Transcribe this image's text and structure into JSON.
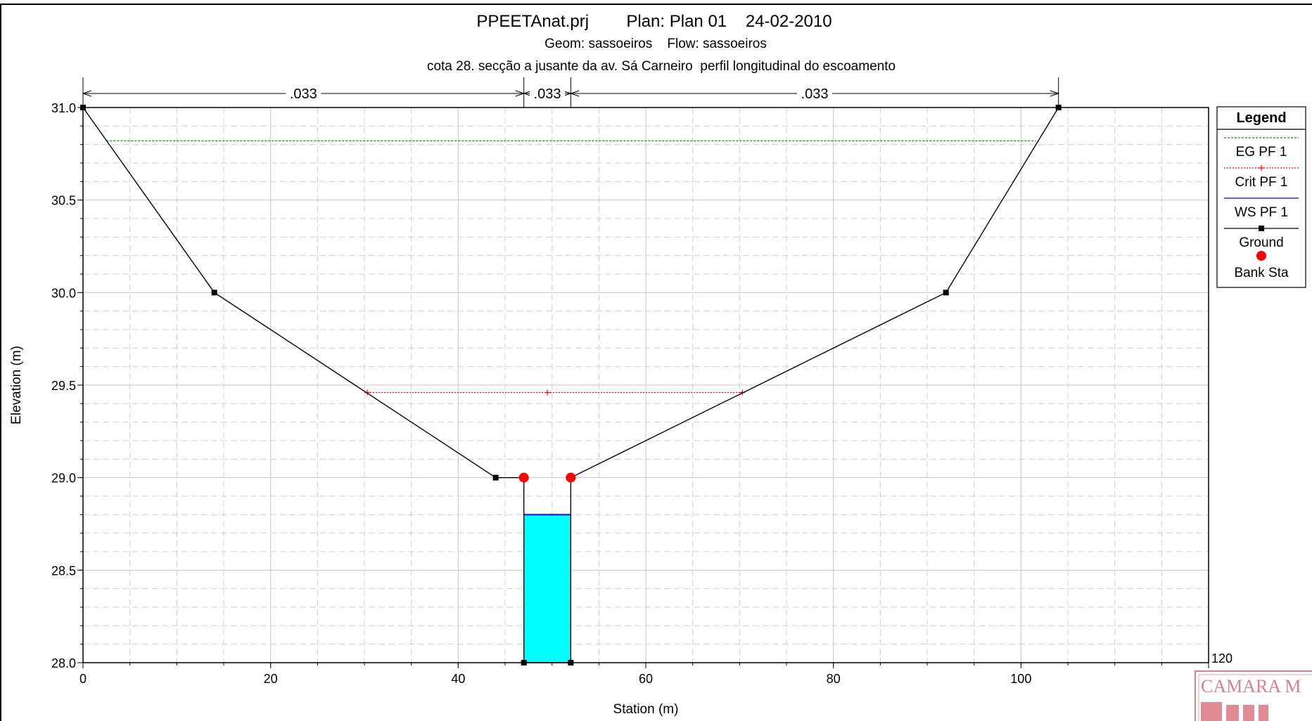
{
  "chart_data": {
    "type": "line",
    "title": "PPEETAnat.prj        Plan: Plan 01    24-02-2010",
    "subtitle": "Geom: sassoeiros    Flow: sassoeiros",
    "subtitle2": "cota 28. secção a jusante da av. Sá Carneiro  perfil longitudinal do escoamento",
    "xlabel": "Station (m)",
    "ylabel": "Elevation (m)",
    "xlim": [
      0,
      120
    ],
    "ylim": [
      28.0,
      31.0
    ],
    "x_ticks": [
      0,
      20,
      40,
      60,
      80,
      100,
      120
    ],
    "x_tick_labels": [
      "0",
      "20",
      "40",
      "60",
      "80",
      "100",
      "120"
    ],
    "y_ticks": [
      28.0,
      28.5,
      29.0,
      29.5,
      30.0,
      30.5,
      31.0
    ],
    "y_tick_labels": [
      "28.0",
      "28.5",
      "29.0",
      "29.5",
      "30.0",
      "30.5",
      "31.0"
    ],
    "grid": true,
    "legend_position": "right",
    "legend_title": "Legend",
    "series": [
      {
        "name": "EG PF 1",
        "color": "#009900",
        "x": [
          2.5,
          101.6
        ],
        "y": [
          30.82,
          30.82
        ]
      },
      {
        "name": "Crit PF 1",
        "color": "#ff0000",
        "x": [
          30.3,
          49.5,
          70.3
        ],
        "y": [
          29.46,
          29.46,
          29.46
        ]
      },
      {
        "name": "WS PF 1",
        "color": "#0000ff",
        "x": [
          47.0,
          52.0
        ],
        "y": [
          28.8,
          28.8
        ]
      },
      {
        "name": "Ground",
        "color": "#000000",
        "x": [
          0,
          14,
          44,
          47,
          47,
          52,
          52,
          92,
          104
        ],
        "y": [
          31.0,
          30.0,
          29.0,
          29.0,
          28.0,
          28.0,
          29.0,
          30.0,
          31.0
        ]
      },
      {
        "name": "Bank Sta",
        "color": "#ff0000",
        "x": [
          47,
          52
        ],
        "y": [
          29.0,
          29.0
        ]
      }
    ],
    "manning_n": [
      {
        "label": ".033",
        "from": 0,
        "to": 47
      },
      {
        "label": ".033",
        "from": 47,
        "to": 52
      },
      {
        "label": ".033",
        "from": 52,
        "to": 104
      }
    ],
    "water_fill_color": "#00ffff",
    "stamp_text": "CAMARA M"
  }
}
